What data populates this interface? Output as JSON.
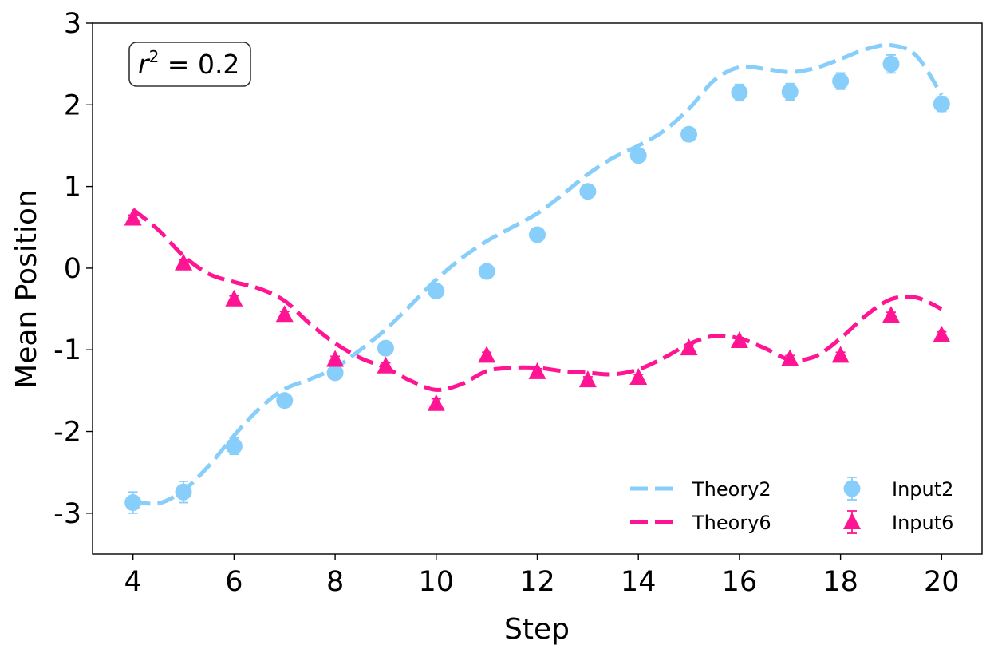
{
  "chart_data": {
    "type": "line",
    "xlabel": "Step",
    "ylabel": "Mean Position",
    "xlim": [
      3.2,
      20.8
    ],
    "ylim": [
      -3.5,
      3.0
    ],
    "xticks": [
      4,
      6,
      8,
      10,
      12,
      14,
      16,
      18,
      20
    ],
    "xtick_labels": [
      "4",
      "6",
      "8",
      "10",
      "12",
      "14",
      "16",
      "18",
      "20"
    ],
    "yticks": [
      3,
      2,
      1,
      0,
      -1,
      -2,
      -3
    ],
    "ytick_labels": [
      "3",
      "2",
      "1",
      "0",
      "-1",
      "-2",
      "-3"
    ],
    "annotation": {
      "text_r": "r",
      "text_sup": "2",
      "text_rest": " = 0.2",
      "position": "top-left"
    },
    "legend": {
      "position": "bottom-right",
      "columns": 2
    },
    "series": [
      {
        "name": "Theory2",
        "kind": "line",
        "style": "dashed",
        "color": "#87CEFA",
        "x": [
          4,
          4.5,
          5,
          5.5,
          6,
          6.5,
          7,
          7.5,
          8,
          8.5,
          9,
          9.5,
          10,
          10.5,
          11,
          11.5,
          12,
          12.5,
          13,
          13.5,
          14,
          14.5,
          15,
          15.5,
          16,
          16.5,
          17,
          17.5,
          18,
          18.5,
          19,
          19.5,
          20
        ],
        "y": [
          -2.85,
          -2.88,
          -2.72,
          -2.42,
          -2.05,
          -1.72,
          -1.48,
          -1.36,
          -1.22,
          -1.0,
          -0.75,
          -0.45,
          -0.14,
          0.12,
          0.33,
          0.5,
          0.67,
          0.9,
          1.15,
          1.35,
          1.5,
          1.68,
          1.95,
          2.3,
          2.46,
          2.44,
          2.4,
          2.45,
          2.56,
          2.68,
          2.73,
          2.6,
          2.12
        ]
      },
      {
        "name": "Theory6",
        "kind": "line",
        "style": "dashed",
        "color": "#FF1493",
        "x": [
          4,
          4.5,
          5,
          5.5,
          6,
          6.5,
          7,
          7.5,
          8,
          8.5,
          9,
          9.5,
          10,
          10.5,
          11,
          11.5,
          12,
          12.5,
          13,
          13.5,
          14,
          14.5,
          15,
          15.5,
          16,
          16.5,
          17,
          17.5,
          18,
          18.5,
          19,
          19.5,
          20
        ],
        "y": [
          0.72,
          0.47,
          0.15,
          -0.07,
          -0.17,
          -0.25,
          -0.4,
          -0.68,
          -0.92,
          -1.1,
          -1.22,
          -1.38,
          -1.49,
          -1.42,
          -1.26,
          -1.22,
          -1.22,
          -1.26,
          -1.28,
          -1.3,
          -1.24,
          -1.1,
          -0.93,
          -0.83,
          -0.86,
          -0.98,
          -1.12,
          -1.08,
          -0.86,
          -0.58,
          -0.38,
          -0.36,
          -0.5
        ]
      },
      {
        "name": "Input2",
        "kind": "scatter",
        "marker": "circle",
        "color": "#87CEFA",
        "x": [
          4,
          5,
          6,
          7,
          8,
          9,
          10,
          11,
          12,
          13,
          14,
          15,
          16,
          17,
          18,
          19,
          20
        ],
        "y": [
          -2.87,
          -2.74,
          -2.18,
          -1.62,
          -1.28,
          -0.98,
          -0.28,
          -0.04,
          0.41,
          0.94,
          1.38,
          1.64,
          2.15,
          2.16,
          2.29,
          2.5,
          2.01
        ],
        "yerr": [
          0.13,
          0.13,
          0.1,
          0.06,
          0.07,
          0.06,
          0.07,
          0.06,
          0.06,
          0.06,
          0.06,
          0.06,
          0.1,
          0.1,
          0.1,
          0.11,
          0.09
        ]
      },
      {
        "name": "Input6",
        "kind": "scatter",
        "marker": "triangle",
        "color": "#FF1493",
        "x": [
          4,
          5,
          6,
          7,
          8,
          9,
          10,
          11,
          12,
          13,
          14,
          15,
          16,
          17,
          18,
          19,
          20
        ],
        "y": [
          0.61,
          0.06,
          -0.38,
          -0.57,
          -1.12,
          -1.2,
          -1.66,
          -1.07,
          -1.27,
          -1.37,
          -1.34,
          -0.98,
          -0.89,
          -1.11,
          -1.07,
          -0.58,
          -0.82
        ],
        "yerr": [
          0.04,
          0.04,
          0.04,
          0.04,
          0.04,
          0.04,
          0.06,
          0.04,
          0.04,
          0.04,
          0.04,
          0.04,
          0.04,
          0.04,
          0.04,
          0.04,
          0.04
        ]
      }
    ]
  }
}
